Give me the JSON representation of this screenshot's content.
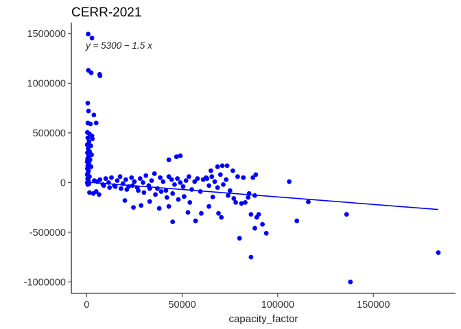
{
  "chart_data": {
    "type": "scatter",
    "title": "CERR-2021",
    "xlabel": "capacity_factor",
    "ylabel": "",
    "xlim": [
      -8000,
      193000
    ],
    "ylim": [
      -1115000,
      1610000
    ],
    "x_ticks": [
      0,
      50000,
      100000,
      150000
    ],
    "x_tick_labels": [
      "0",
      "50000",
      "100000",
      "150000"
    ],
    "y_ticks": [
      -1000000,
      -500000,
      0,
      500000,
      1000000,
      1500000
    ],
    "y_tick_labels": [
      "-1000000",
      "-500000",
      "0",
      "500000",
      "1000000",
      "1500000"
    ],
    "grid": false,
    "point_color": "#0000FF",
    "line_color": "#0000FF",
    "annotation": "y = 5300 − 1.5 x",
    "regression": {
      "intercept": 5300,
      "slope": -1.5,
      "x_range": [
        0,
        184000
      ]
    },
    "points": [
      [
        800,
        1495000
      ],
      [
        2800,
        1455000
      ],
      [
        900,
        1130000
      ],
      [
        2400,
        1105000
      ],
      [
        6800,
        1090000
      ],
      [
        7000,
        1075000
      ],
      [
        600,
        800000
      ],
      [
        1000,
        720000
      ],
      [
        3800,
        680000
      ],
      [
        5000,
        600000
      ],
      [
        600,
        600000
      ],
      [
        2000,
        590000
      ],
      [
        400,
        505000
      ],
      [
        1500,
        490000
      ],
      [
        2800,
        470000
      ],
      [
        600,
        450000
      ],
      [
        3000,
        440000
      ],
      [
        1200,
        410000
      ],
      [
        300,
        380000
      ],
      [
        2200,
        370000
      ],
      [
        800,
        340000
      ],
      [
        1600,
        310000
      ],
      [
        400,
        300000
      ],
      [
        2600,
        280000
      ],
      [
        900,
        260000
      ],
      [
        500,
        240000
      ],
      [
        1800,
        230000
      ],
      [
        300,
        210000
      ],
      [
        1200,
        190000
      ],
      [
        600,
        170000
      ],
      [
        2300,
        160000
      ],
      [
        400,
        140000
      ],
      [
        1000,
        120000
      ],
      [
        700,
        100000
      ],
      [
        300,
        80000
      ],
      [
        1500,
        60000
      ],
      [
        500,
        40000
      ],
      [
        900,
        20000
      ],
      [
        300,
        0
      ],
      [
        1300,
        -10000
      ],
      [
        600,
        -20000
      ],
      [
        4000,
        20000
      ],
      [
        5500,
        10000
      ],
      [
        7000,
        30000
      ],
      [
        8500,
        -20000
      ],
      [
        10000,
        40000
      ],
      [
        11500,
        0
      ],
      [
        13000,
        50000
      ],
      [
        14500,
        -30000
      ],
      [
        16000,
        20000
      ],
      [
        17500,
        60000
      ],
      [
        19000,
        -10000
      ],
      [
        20500,
        30000
      ],
      [
        22000,
        -40000
      ],
      [
        23500,
        50000
      ],
      [
        25000,
        10000
      ],
      [
        26500,
        -50000
      ],
      [
        28000,
        40000
      ],
      [
        29500,
        0
      ],
      [
        31000,
        70000
      ],
      [
        32500,
        -30000
      ],
      [
        34000,
        20000
      ],
      [
        35500,
        90000
      ],
      [
        37000,
        -60000
      ],
      [
        38500,
        50000
      ],
      [
        40000,
        10000
      ],
      [
        41500,
        -80000
      ],
      [
        43000,
        60000
      ],
      [
        44500,
        30000
      ],
      [
        46000,
        -20000
      ],
      [
        47500,
        40000
      ],
      [
        49000,
        0
      ],
      [
        50500,
        -40000
      ],
      [
        52000,
        20000
      ],
      [
        53500,
        60000
      ],
      [
        55000,
        -70000
      ],
      [
        56500,
        10000
      ],
      [
        58000,
        40000
      ],
      [
        59500,
        -90000
      ],
      [
        61000,
        30000
      ],
      [
        62500,
        50000
      ],
      [
        64000,
        -30000
      ],
      [
        65500,
        60000
      ],
      [
        67000,
        10000
      ],
      [
        68500,
        -50000
      ],
      [
        70000,
        80000
      ],
      [
        71500,
        -20000
      ],
      [
        73000,
        30000
      ],
      [
        9000,
        -30000
      ],
      [
        12000,
        -50000
      ],
      [
        15000,
        -40000
      ],
      [
        18000,
        -60000
      ],
      [
        21000,
        -70000
      ],
      [
        24000,
        -30000
      ],
      [
        27000,
        -80000
      ],
      [
        30000,
        -100000
      ],
      [
        33000,
        -60000
      ],
      [
        36000,
        -120000
      ],
      [
        39000,
        -90000
      ],
      [
        42000,
        -150000
      ],
      [
        45000,
        -110000
      ],
      [
        48000,
        -170000
      ],
      [
        51000,
        -140000
      ],
      [
        54000,
        -200000
      ],
      [
        20000,
        -180000
      ],
      [
        24500,
        -250000
      ],
      [
        28500,
        -230000
      ],
      [
        33000,
        -190000
      ],
      [
        38000,
        -260000
      ],
      [
        43000,
        -240000
      ],
      [
        45000,
        -395000
      ],
      [
        53000,
        -300000
      ],
      [
        57000,
        -385000
      ],
      [
        60000,
        -310000
      ],
      [
        64000,
        -240000
      ],
      [
        66000,
        -145000
      ],
      [
        69000,
        -310000
      ],
      [
        70500,
        -350000
      ],
      [
        1500,
        -100000
      ],
      [
        3500,
        -110000
      ],
      [
        5000,
        -90000
      ],
      [
        6500,
        -120000
      ],
      [
        43000,
        230000
      ],
      [
        47000,
        260000
      ],
      [
        49000,
        270000
      ],
      [
        65000,
        120000
      ],
      [
        68500,
        160000
      ],
      [
        71000,
        170000
      ],
      [
        73500,
        170000
      ],
      [
        63000,
        40000
      ],
      [
        76500,
        120000
      ],
      [
        79000,
        60000
      ],
      [
        82000,
        50000
      ],
      [
        84500,
        -150000
      ],
      [
        87000,
        50000
      ],
      [
        88500,
        80000
      ],
      [
        78000,
        -200000
      ],
      [
        83000,
        -200000
      ],
      [
        86000,
        -320000
      ],
      [
        89000,
        -350000
      ],
      [
        90000,
        -320000
      ],
      [
        92000,
        -420000
      ],
      [
        88000,
        -460000
      ],
      [
        94000,
        -510000
      ],
      [
        80000,
        -560000
      ],
      [
        86000,
        -750000
      ],
      [
        75000,
        -80000
      ],
      [
        74000,
        -130000
      ],
      [
        77000,
        -160000
      ],
      [
        81000,
        -210000
      ],
      [
        85000,
        -110000
      ],
      [
        88000,
        -130000
      ],
      [
        106000,
        10000
      ],
      [
        110000,
        -385000
      ],
      [
        116000,
        -195000
      ],
      [
        136000,
        -320000
      ],
      [
        138000,
        -1000000
      ],
      [
        184000,
        -705000
      ]
    ]
  }
}
